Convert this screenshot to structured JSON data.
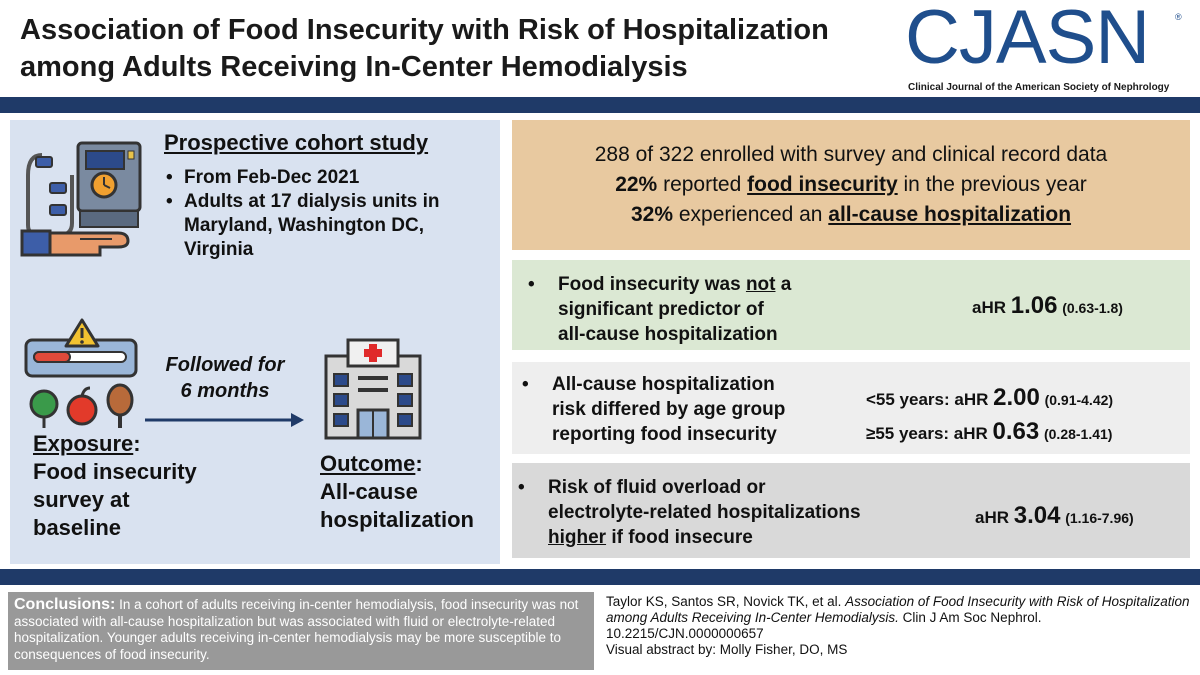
{
  "header": {
    "title_line1": "Association of Food Insecurity with Risk of Hospitalization",
    "title_line2": "among Adults Receiving In-Center Hemodialysis",
    "logo_word": "CJASN",
    "logo_registered": "®",
    "logo_subtitle": "Clinical Journal of the American Society of Nephrology"
  },
  "study": {
    "heading": "Prospective cohort study",
    "bullets": [
      "From Feb-Dec 2021",
      "Adults at 17 dialysis units in Maryland, Washington DC, Virginia"
    ]
  },
  "flow": {
    "followed_line1": "Followed for",
    "followed_line2": "6 months",
    "exposure_label": "Exposure",
    "exposure_text_line1": "Food insecurity",
    "exposure_text_line2": "survey at",
    "exposure_text_line3": "baseline",
    "outcome_label": "Outcome",
    "outcome_text_line1": "All-cause",
    "outcome_text_line2": "hospitalization"
  },
  "summary": {
    "line1": "288 of 322 enrolled with survey and clinical record data",
    "line2_pct": "22%",
    "line2_a": "reported",
    "line2_key": "food insecurity",
    "line2_b": "in the previous year",
    "line3_pct": "32%",
    "line3_a": "experienced an",
    "line3_key": "all-cause hospitalization"
  },
  "findings": {
    "f1": {
      "bullet": "•",
      "line1_a": "Food insecurity was",
      "line1_not": "not",
      "line1_b": "a",
      "line2": "significant predictor of",
      "line3": "all-cause hospitalization",
      "ahr_label": "aHR",
      "ahr_value": "1.06",
      "ahr_ci": "(0.63-1.8)"
    },
    "f2": {
      "bullet": "•",
      "line1": "All-cause hospitalization",
      "line2": "risk differed by age group",
      "line3": "reporting food insecurity",
      "row1_label": "<55 years: aHR",
      "row1_value": "2.00",
      "row1_ci": "(0.91-4.42)",
      "row2_label": "≥55 years: aHR",
      "row2_value": "0.63",
      "row2_ci": "(0.28-1.41)"
    },
    "f3": {
      "bullet": "•",
      "line1": "Risk of fluid overload or",
      "line2": "electrolyte-related hospitalizations",
      "line3_key": "higher",
      "line3_b": "if food insecure",
      "ahr_label": "aHR",
      "ahr_value": "3.04",
      "ahr_ci": "(1.16-7.96)"
    }
  },
  "conclusions": {
    "label": "Conclusions:",
    "text": "In a cohort of adults receiving in-center hemodialysis, food insecurity was not associated with all-cause hospitalization but was associated with fluid or electrolyte-related hospitalization. Younger adults receiving in-center hemodialysis may be more susceptible to consequences of food insecurity."
  },
  "citation": {
    "authors": "Taylor KS, Santos SR, Novick TK, et al.",
    "title": "Association of Food Insecurity with Risk of Hospitalization among Adults Receiving In-Center Hemodialysis.",
    "journal": "Clin J Am Soc Nephrol.",
    "doi": "10.2215/CJN.0000000657",
    "credit": "Visual abstract by: Molly Fisher, DO, MS"
  },
  "colors": {
    "navy_band": "#1f3a68",
    "logo_blue": "#1f4e8c",
    "left_panel": "#d9e2f0",
    "summary_box": "#e8c9a0",
    "finding1_box": "#dbe8d3",
    "finding2_box": "#eeeeee",
    "finding3_box": "#d9d9d9",
    "conclusions_box": "#999999"
  }
}
